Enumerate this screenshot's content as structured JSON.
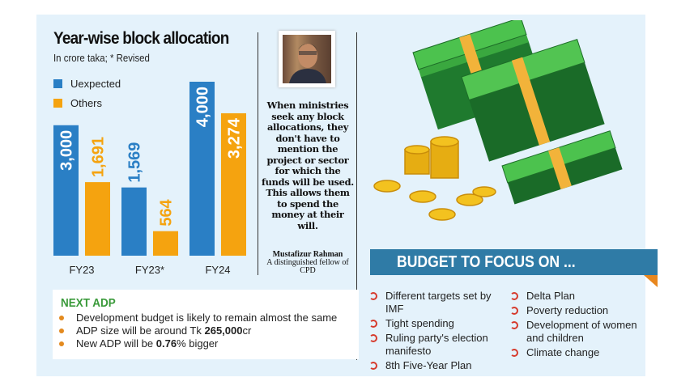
{
  "chart_data": {
    "type": "bar",
    "title": "Year-wise block allocation",
    "subtitle": "In crore taka; * Revised",
    "categories": [
      "FY23",
      "FY23*",
      "FY24"
    ],
    "series": [
      {
        "name": "Uexpected",
        "color": "#2a7fc5",
        "values": [
          3000,
          1569,
          4000
        ],
        "labels": [
          "3,000",
          "1,569",
          "4,000"
        ]
      },
      {
        "name": "Others",
        "color": "#f5a30f",
        "values": [
          1691,
          564,
          3274
        ],
        "labels": [
          "1,691",
          "564",
          "3,274"
        ]
      }
    ],
    "ylim": [
      0,
      4000
    ],
    "grid": false,
    "legend": "top-left"
  },
  "quote": {
    "text": "When ministries seek any block allocations, they don't have to mention the project or sector for which the funds will be used. This allows them to spend the money at their will.",
    "author": "Mustafizur Rahman",
    "author_title": "A distinguished fellow of CPD"
  },
  "next_adp": {
    "heading": "NEXT ADP",
    "items": [
      {
        "pre": "Development budget is likely to remain almost the same",
        "bold": "",
        "post": ""
      },
      {
        "pre": "ADP size will be around Tk ",
        "bold": "265,000",
        "post": "cr"
      },
      {
        "pre": "New ADP will be ",
        "bold": "0.76",
        "post": "% bigger"
      }
    ]
  },
  "budget_focus": {
    "heading": "BUDGET TO FOCUS ON ...",
    "left": [
      "Different targets set by IMF",
      "Tight spending",
      "Ruling party's election manifesto",
      "8th Five-Year Plan"
    ],
    "right": [
      "Delta Plan",
      "Poverty reduction",
      "Development of women and children",
      "Climate change"
    ]
  }
}
